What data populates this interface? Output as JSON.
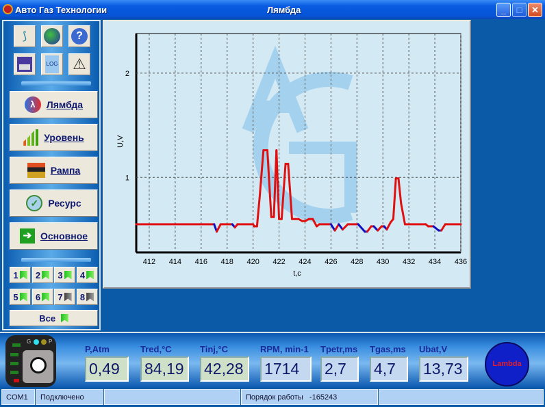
{
  "window": {
    "app_title": "Авто Газ Технологии",
    "title": "Лямбда",
    "minimize": "_",
    "maximize": "□",
    "close": "✕"
  },
  "toolbar_icons": [
    "connect-icon",
    "globe-icon",
    "help-icon",
    "save-icon",
    "log-icon",
    "warning-icon"
  ],
  "log_label": "LOG",
  "nav": [
    {
      "label": "Лямбда",
      "icon": "lambda-icon"
    },
    {
      "label": "Уровень",
      "icon": "level-bars-icon"
    },
    {
      "label": "Рампа",
      "icon": "ramp-icon"
    },
    {
      "label": "Ресурс",
      "icon": "resource-icon"
    },
    {
      "label": "Основное",
      "icon": "arrow-right-icon"
    }
  ],
  "cylinders": [
    {
      "label": "1",
      "active": true
    },
    {
      "label": "2",
      "active": true
    },
    {
      "label": "3",
      "active": true
    },
    {
      "label": "4",
      "active": true
    },
    {
      "label": "5",
      "active": true
    },
    {
      "label": "6",
      "active": true
    },
    {
      "label": "7",
      "active": false
    },
    {
      "label": "8",
      "active": false
    }
  ],
  "all_label": "Все",
  "chart_data": {
    "type": "line",
    "xlabel": "t,c",
    "ylabel": "U,V",
    "xlim": [
      411,
      436
    ],
    "ylim": [
      0.28,
      2.38
    ],
    "xticks": [
      412,
      414,
      416,
      418,
      420,
      422,
      424,
      426,
      428,
      430,
      432,
      434,
      436
    ],
    "yticks": [
      1,
      2
    ],
    "grid": true,
    "colors": {
      "normal": "#e01010",
      "low": "#1010c0"
    },
    "points": [
      [
        411,
        0.55
      ],
      [
        417,
        0.55
      ],
      [
        417.2,
        0.48
      ],
      [
        417.5,
        0.55
      ],
      [
        418.4,
        0.55
      ],
      [
        418.6,
        0.52
      ],
      [
        418.8,
        0.55
      ],
      [
        420,
        0.55
      ],
      [
        420.1,
        0.53
      ],
      [
        420.3,
        0.53
      ],
      [
        420.5,
        0.8
      ],
      [
        420.8,
        1.26
      ],
      [
        421.1,
        1.26
      ],
      [
        421.4,
        0.62
      ],
      [
        421.6,
        0.62
      ],
      [
        421.8,
        1.26
      ],
      [
        422.0,
        0.6
      ],
      [
        422.2,
        0.6
      ],
      [
        422.5,
        1.13
      ],
      [
        422.7,
        1.13
      ],
      [
        423.0,
        0.6
      ],
      [
        423.5,
        0.6
      ],
      [
        423.8,
        0.58
      ],
      [
        424,
        0.58
      ],
      [
        424.3,
        0.6
      ],
      [
        424.6,
        0.6
      ],
      [
        424.9,
        0.53
      ],
      [
        425.1,
        0.55
      ],
      [
        426,
        0.55
      ],
      [
        426.3,
        0.49
      ],
      [
        426.6,
        0.55
      ],
      [
        426.9,
        0.5
      ],
      [
        427.3,
        0.55
      ],
      [
        428.1,
        0.55
      ],
      [
        428.6,
        0.48
      ],
      [
        428.8,
        0.48
      ],
      [
        429.1,
        0.53
      ],
      [
        429.3,
        0.53
      ],
      [
        429.6,
        0.49
      ],
      [
        429.9,
        0.53
      ],
      [
        430.1,
        0.53
      ],
      [
        430.3,
        0.5
      ],
      [
        430.6,
        0.57
      ],
      [
        430.8,
        0.6
      ],
      [
        431.0,
        0.99
      ],
      [
        431.2,
        0.99
      ],
      [
        431.4,
        0.75
      ],
      [
        431.7,
        0.55
      ],
      [
        433.3,
        0.55
      ],
      [
        433.5,
        0.53
      ],
      [
        433.9,
        0.53
      ],
      [
        434.3,
        0.49
      ],
      [
        434.5,
        0.49
      ],
      [
        434.8,
        0.55
      ],
      [
        436,
        0.55
      ]
    ]
  },
  "device": {
    "g": "G",
    "p": "P"
  },
  "readouts": [
    {
      "label": "P,Atm",
      "value": "0,49"
    },
    {
      "label": "Tred,°C",
      "value": "84,19"
    },
    {
      "label": "Tinj,°C",
      "value": "42,28"
    },
    {
      "label": "RPM, min-1",
      "value": "1714"
    },
    {
      "label": "Tpetr,ms",
      "value": "2,7"
    },
    {
      "label": "Tgas,ms",
      "value": "4,7"
    },
    {
      "label": "Ubat,V",
      "value": "13,73"
    }
  ],
  "lambda_indicator": "Lambda",
  "status": {
    "port": "COM1",
    "connection": "Подключено",
    "order_label": "Порядок работы",
    "order_value": "-165243"
  }
}
